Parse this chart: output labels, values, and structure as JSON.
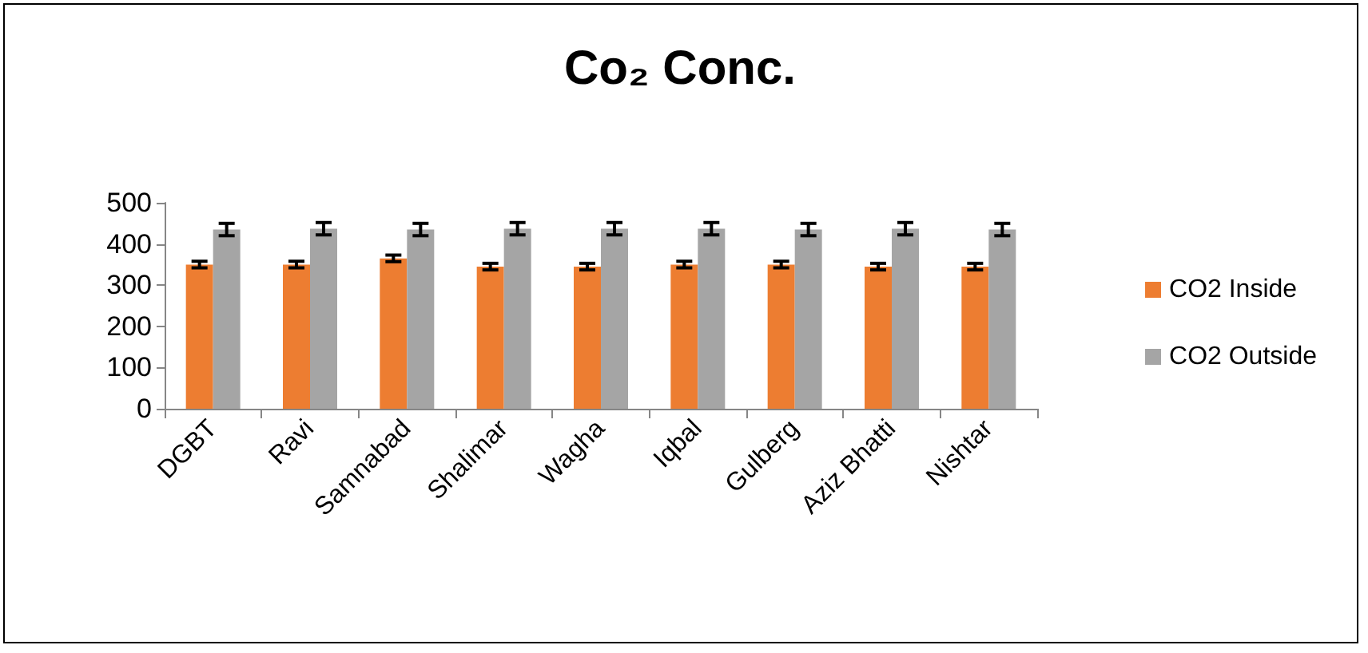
{
  "chart_data": {
    "type": "bar",
    "title": "Co₂ Conc.",
    "categories": [
      "DGBT",
      "Ravi",
      "Samnabad",
      "Shalimar",
      "Wagha",
      "Iqbal",
      "Gulberg",
      "Aziz Bhatti",
      "Nishtar"
    ],
    "series": [
      {
        "name": "CO2 Inside",
        "color": "#ed7d31",
        "values": [
          350,
          350,
          365,
          345,
          345,
          350,
          350,
          345,
          345
        ],
        "errors": [
          8,
          8,
          8,
          8,
          8,
          8,
          8,
          8,
          8
        ]
      },
      {
        "name": "CO2 Outside",
        "color": "#a5a5a5",
        "values": [
          435,
          437,
          435,
          437,
          437,
          437,
          435,
          437,
          435
        ],
        "errors": [
          15,
          15,
          15,
          15,
          15,
          15,
          15,
          15,
          15
        ]
      }
    ],
    "ylim": [
      0,
      500
    ],
    "yticks": [
      0,
      100,
      200,
      300,
      400,
      500
    ],
    "grid": false,
    "legend": "right"
  }
}
